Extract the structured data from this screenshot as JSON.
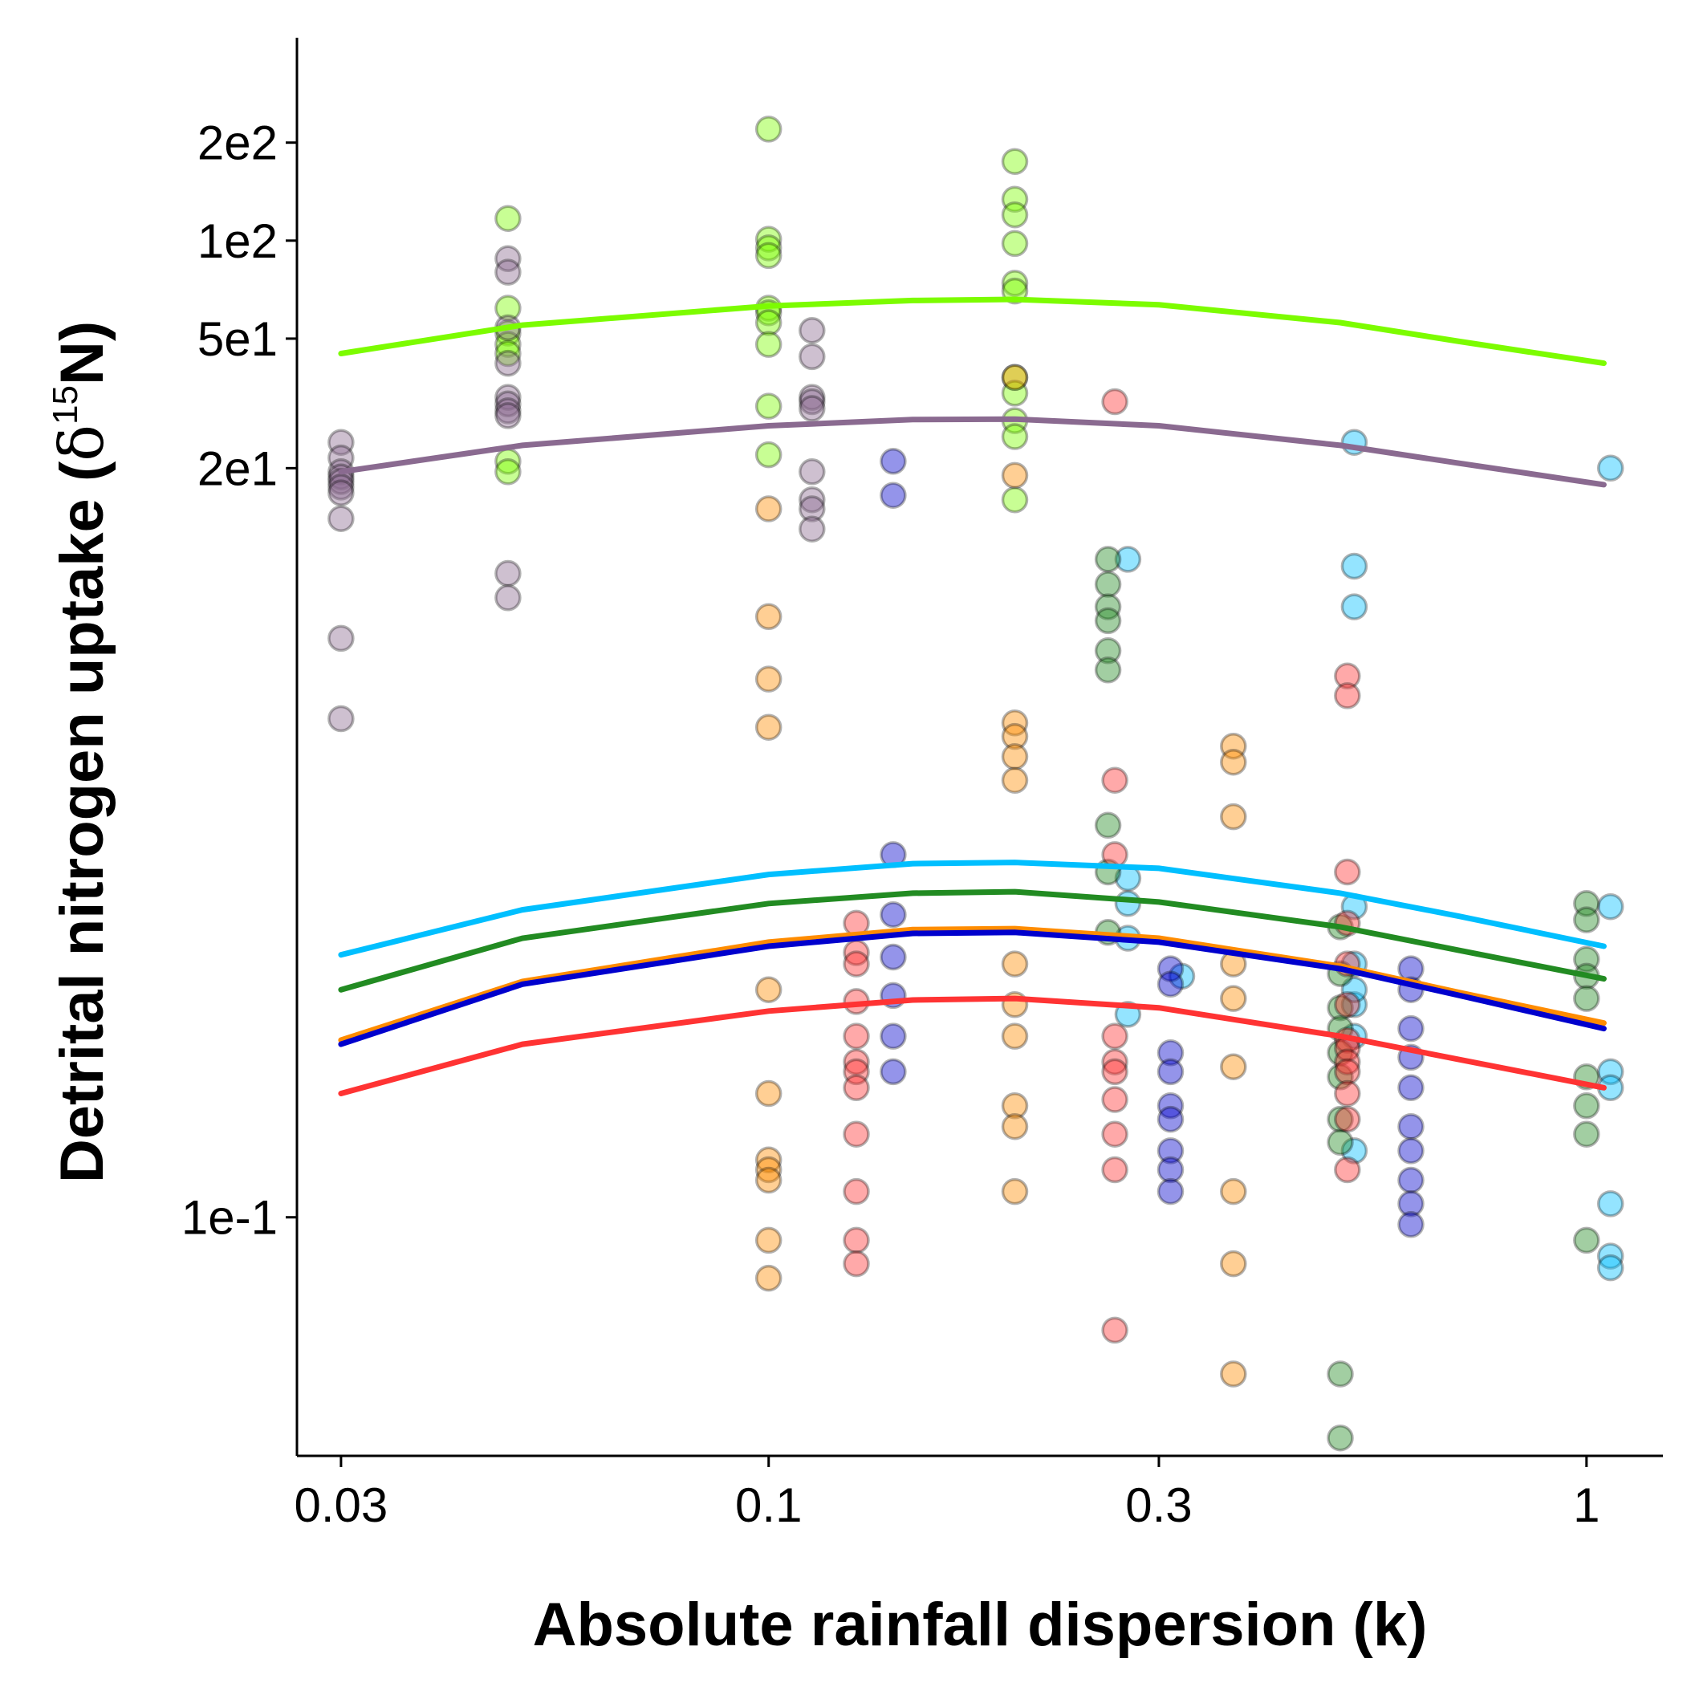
{
  "chart_data": {
    "type": "scatter",
    "title": "",
    "xlabel": "Absolute rainfall dispersion (k)",
    "ylabel": "Detrital nitrogen uptake (",
    "ylabel_delta": "δ",
    "ylabel_sup": "15",
    "ylabel_tail": "N)",
    "x_scale": "log",
    "y_scale": "log",
    "xlim": [
      0.0265,
      1.24
    ],
    "ylim": [
      0.0185,
      420
    ],
    "x_ticks": [
      {
        "value": 0.03,
        "label": "0.03"
      },
      {
        "value": 0.1,
        "label": "0.1"
      },
      {
        "value": 0.3,
        "label": "0.3"
      },
      {
        "value": 1,
        "label": "1"
      }
    ],
    "y_ticks": [
      {
        "value": 0.1,
        "label": "1e-1"
      },
      {
        "value": 20,
        "label": "2e1"
      },
      {
        "value": 50,
        "label": "5e1"
      },
      {
        "value": 100,
        "label": "1e2"
      },
      {
        "value": 200,
        "label": "2e2"
      }
    ],
    "grid": false,
    "legend": "none",
    "series": [
      {
        "color": "#7CFC00",
        "fit": [
          [
            0.03,
            45
          ],
          [
            0.05,
            55
          ],
          [
            0.1,
            63
          ],
          [
            0.15,
            65.5
          ],
          [
            0.2,
            66
          ],
          [
            0.3,
            63.5
          ],
          [
            0.5,
            56
          ],
          [
            0.7,
            49
          ],
          [
            1.05,
            42
          ]
        ],
        "points": [
          [
            0.1,
            220
          ],
          [
            0.2,
            175
          ],
          [
            0.2,
            134
          ],
          [
            0.2,
            120
          ],
          [
            0.2,
            98
          ],
          [
            0.2,
            74
          ],
          [
            0.2,
            70
          ],
          [
            0.2,
            38
          ],
          [
            0.2,
            34
          ],
          [
            0.2,
            28
          ],
          [
            0.2,
            25
          ],
          [
            0.2,
            16
          ],
          [
            0.1,
            101
          ],
          [
            0.1,
            95
          ],
          [
            0.1,
            90
          ],
          [
            0.1,
            62
          ],
          [
            0.1,
            60
          ],
          [
            0.1,
            56
          ],
          [
            0.1,
            48
          ],
          [
            0.1,
            31
          ],
          [
            0.1,
            22
          ],
          [
            0.048,
            117
          ],
          [
            0.048,
            62
          ],
          [
            0.048,
            52
          ],
          [
            0.048,
            48
          ],
          [
            0.048,
            45
          ],
          [
            0.048,
            21
          ],
          [
            0.048,
            19.5
          ]
        ]
      },
      {
        "color": "#8A6A90",
        "fit": [
          [
            0.03,
            19.5
          ],
          [
            0.05,
            23.5
          ],
          [
            0.1,
            27
          ],
          [
            0.15,
            28.2
          ],
          [
            0.2,
            28.3
          ],
          [
            0.3,
            27
          ],
          [
            0.5,
            23.5
          ],
          [
            0.7,
            20.7
          ],
          [
            1.05,
            17.8
          ]
        ],
        "points": [
          [
            0.03,
            24
          ],
          [
            0.03,
            21.5
          ],
          [
            0.03,
            19.5
          ],
          [
            0.03,
            18.8
          ],
          [
            0.03,
            18.2
          ],
          [
            0.03,
            17.5
          ],
          [
            0.03,
            16.8
          ],
          [
            0.03,
            14
          ],
          [
            0.03,
            6
          ],
          [
            0.03,
            3.4
          ],
          [
            0.048,
            88
          ],
          [
            0.048,
            80
          ],
          [
            0.048,
            54
          ],
          [
            0.048,
            42
          ],
          [
            0.048,
            33
          ],
          [
            0.048,
            31.5
          ],
          [
            0.048,
            30
          ],
          [
            0.048,
            29
          ],
          [
            0.048,
            9.5
          ],
          [
            0.048,
            8
          ],
          [
            0.113,
            53
          ],
          [
            0.113,
            44
          ],
          [
            0.113,
            33
          ],
          [
            0.113,
            32
          ],
          [
            0.113,
            30.5
          ],
          [
            0.113,
            19.5
          ],
          [
            0.113,
            16
          ],
          [
            0.113,
            15
          ],
          [
            0.113,
            13
          ]
        ]
      },
      {
        "color": "#00BFFF",
        "fit": [
          [
            0.03,
            0.64
          ],
          [
            0.05,
            0.88
          ],
          [
            0.1,
            1.13
          ],
          [
            0.15,
            1.22
          ],
          [
            0.2,
            1.23
          ],
          [
            0.3,
            1.18
          ],
          [
            0.5,
            0.99
          ],
          [
            0.7,
            0.84
          ],
          [
            1.05,
            0.68
          ]
        ],
        "points": [
          [
            0.275,
            10.5
          ],
          [
            0.275,
            1.1
          ],
          [
            0.275,
            0.92
          ],
          [
            0.275,
            0.72
          ],
          [
            0.275,
            0.42
          ],
          [
            0.52,
            10
          ],
          [
            0.52,
            7.5
          ],
          [
            0.52,
            0.9
          ],
          [
            0.52,
            0.6
          ],
          [
            0.52,
            0.45
          ],
          [
            0.52,
            0.5
          ],
          [
            0.52,
            0.36
          ],
          [
            0.52,
            0.16
          ],
          [
            0.52,
            24
          ],
          [
            1.07,
            20
          ],
          [
            1.07,
            0.9
          ],
          [
            1.07,
            0.28
          ],
          [
            1.07,
            0.25
          ],
          [
            1.07,
            0.11
          ],
          [
            1.07,
            0.076
          ],
          [
            1.07,
            0.07
          ],
          [
            0.32,
            0.55
          ]
        ]
      },
      {
        "color": "#228B22",
        "fit": [
          [
            0.03,
            0.5
          ],
          [
            0.05,
            0.72
          ],
          [
            0.1,
            0.92
          ],
          [
            0.15,
            0.99
          ],
          [
            0.2,
            1.0
          ],
          [
            0.3,
            0.93
          ],
          [
            0.5,
            0.78
          ],
          [
            0.7,
            0.66
          ],
          [
            1.05,
            0.54
          ]
        ],
        "points": [
          [
            0.26,
            10.5
          ],
          [
            0.26,
            8.8
          ],
          [
            0.26,
            7.5
          ],
          [
            0.26,
            6.8
          ],
          [
            0.26,
            5.5
          ],
          [
            0.26,
            4.8
          ],
          [
            0.26,
            1.6
          ],
          [
            0.26,
            1.15
          ],
          [
            0.26,
            0.75
          ],
          [
            0.5,
            0.78
          ],
          [
            0.5,
            0.56
          ],
          [
            0.5,
            0.44
          ],
          [
            0.5,
            0.38
          ],
          [
            0.5,
            0.32
          ],
          [
            0.5,
            0.27
          ],
          [
            0.5,
            0.2
          ],
          [
            0.5,
            0.17
          ],
          [
            0.5,
            0.033
          ],
          [
            0.5,
            0.021
          ],
          [
            1.0,
            0.92
          ],
          [
            1.0,
            0.82
          ],
          [
            1.0,
            0.62
          ],
          [
            1.0,
            0.55
          ],
          [
            1.0,
            0.47
          ],
          [
            1.0,
            0.27
          ],
          [
            1.0,
            0.22
          ],
          [
            1.0,
            0.18
          ],
          [
            1.0,
            0.085
          ]
        ]
      },
      {
        "color": "#FF8C00",
        "fit": [
          [
            0.03,
            0.35
          ],
          [
            0.05,
            0.53
          ],
          [
            0.1,
            0.7
          ],
          [
            0.15,
            0.765
          ],
          [
            0.2,
            0.77
          ],
          [
            0.3,
            0.72
          ],
          [
            0.5,
            0.59
          ],
          [
            0.7,
            0.49
          ],
          [
            1.05,
            0.395
          ]
        ],
        "points": [
          [
            0.1,
            15
          ],
          [
            0.1,
            7
          ],
          [
            0.1,
            4.5
          ],
          [
            0.1,
            3.2
          ],
          [
            0.1,
            0.5
          ],
          [
            0.1,
            0.24
          ],
          [
            0.1,
            0.15
          ],
          [
            0.1,
            0.14
          ],
          [
            0.1,
            0.13
          ],
          [
            0.1,
            0.085
          ],
          [
            0.1,
            0.065
          ],
          [
            0.2,
            38
          ],
          [
            0.2,
            19
          ],
          [
            0.2,
            3.3
          ],
          [
            0.2,
            3.0
          ],
          [
            0.2,
            2.6
          ],
          [
            0.2,
            2.2
          ],
          [
            0.2,
            0.6
          ],
          [
            0.2,
            0.45
          ],
          [
            0.2,
            0.36
          ],
          [
            0.2,
            0.22
          ],
          [
            0.2,
            0.19
          ],
          [
            0.2,
            0.12
          ],
          [
            0.37,
            2.8
          ],
          [
            0.37,
            2.5
          ],
          [
            0.37,
            1.7
          ],
          [
            0.37,
            0.6
          ],
          [
            0.37,
            0.47
          ],
          [
            0.37,
            0.29
          ],
          [
            0.37,
            0.12
          ],
          [
            0.37,
            0.072
          ],
          [
            0.37,
            0.033
          ]
        ]
      },
      {
        "color": "#0000CD",
        "fit": [
          [
            0.03,
            0.34
          ],
          [
            0.05,
            0.52
          ],
          [
            0.1,
            0.68
          ],
          [
            0.15,
            0.745
          ],
          [
            0.2,
            0.75
          ],
          [
            0.3,
            0.7
          ],
          [
            0.5,
            0.58
          ],
          [
            0.7,
            0.48
          ],
          [
            1.05,
            0.38
          ]
        ],
        "points": [
          [
            0.142,
            21
          ],
          [
            0.142,
            16.5
          ],
          [
            0.142,
            1.3
          ],
          [
            0.142,
            0.85
          ],
          [
            0.142,
            0.63
          ],
          [
            0.142,
            0.48
          ],
          [
            0.142,
            0.36
          ],
          [
            0.142,
            0.28
          ],
          [
            0.31,
            0.58
          ],
          [
            0.31,
            0.52
          ],
          [
            0.31,
            0.32
          ],
          [
            0.31,
            0.28
          ],
          [
            0.31,
            0.22
          ],
          [
            0.31,
            0.2
          ],
          [
            0.31,
            0.16
          ],
          [
            0.31,
            0.14
          ],
          [
            0.31,
            0.12
          ],
          [
            0.61,
            0.58
          ],
          [
            0.61,
            0.5
          ],
          [
            0.61,
            0.38
          ],
          [
            0.61,
            0.31
          ],
          [
            0.61,
            0.25
          ],
          [
            0.61,
            0.19
          ],
          [
            0.61,
            0.16
          ],
          [
            0.61,
            0.13
          ],
          [
            0.61,
            0.11
          ],
          [
            0.61,
            0.095
          ]
        ]
      },
      {
        "color": "#FF3333",
        "fit": [
          [
            0.03,
            0.24
          ],
          [
            0.05,
            0.34
          ],
          [
            0.1,
            0.43
          ],
          [
            0.15,
            0.465
          ],
          [
            0.2,
            0.47
          ],
          [
            0.3,
            0.44
          ],
          [
            0.5,
            0.36
          ],
          [
            0.7,
            0.305
          ],
          [
            1.05,
            0.25
          ]
        ],
        "points": [
          [
            0.128,
            0.8
          ],
          [
            0.128,
            0.65
          ],
          [
            0.128,
            0.6
          ],
          [
            0.128,
            0.46
          ],
          [
            0.128,
            0.36
          ],
          [
            0.128,
            0.3
          ],
          [
            0.128,
            0.28
          ],
          [
            0.128,
            0.25
          ],
          [
            0.128,
            0.18
          ],
          [
            0.128,
            0.12
          ],
          [
            0.128,
            0.085
          ],
          [
            0.128,
            0.072
          ],
          [
            0.265,
            32
          ],
          [
            0.265,
            2.2
          ],
          [
            0.265,
            1.3
          ],
          [
            0.265,
            0.36
          ],
          [
            0.265,
            0.3
          ],
          [
            0.265,
            0.28
          ],
          [
            0.265,
            0.23
          ],
          [
            0.265,
            0.18
          ],
          [
            0.265,
            0.14
          ],
          [
            0.265,
            0.045
          ],
          [
            0.51,
            4.6
          ],
          [
            0.51,
            4.0
          ],
          [
            0.51,
            1.15
          ],
          [
            0.51,
            0.8
          ],
          [
            0.51,
            0.6
          ],
          [
            0.51,
            0.45
          ],
          [
            0.51,
            0.35
          ],
          [
            0.51,
            0.33
          ],
          [
            0.51,
            0.3
          ],
          [
            0.51,
            0.28
          ],
          [
            0.51,
            0.24
          ],
          [
            0.51,
            0.2
          ],
          [
            0.51,
            0.14
          ]
        ]
      }
    ]
  }
}
